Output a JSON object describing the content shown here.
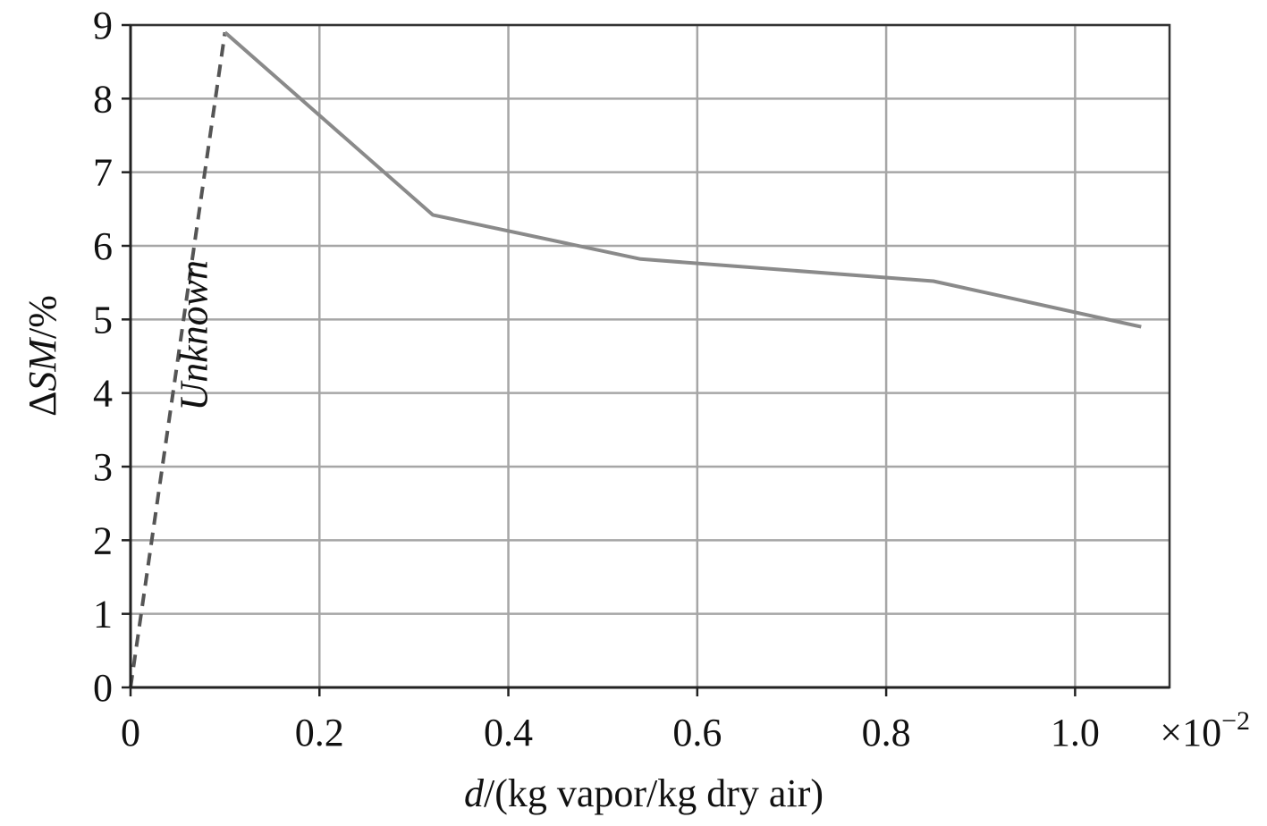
{
  "chart_data": {
    "type": "line",
    "title": "",
    "xlabel": {
      "italic": "d",
      "rest": "/(kg vapor/kg dry air)"
    },
    "ylabel": {
      "delta": "Δ",
      "italic": "SM",
      "rest": "/%"
    },
    "x_multiplier": {
      "prefix": "×10",
      "exponent": "−2"
    },
    "xlim": [
      0,
      1.1
    ],
    "ylim": [
      0,
      9
    ],
    "x_ticks": [
      0,
      0.2,
      0.4,
      0.6,
      0.8,
      1.0
    ],
    "x_tick_labels": [
      "0",
      "0.2",
      "0.4",
      "0.6",
      "0.8",
      "1.0"
    ],
    "y_ticks": [
      0,
      1,
      2,
      3,
      4,
      5,
      6,
      7,
      8,
      9
    ],
    "y_tick_labels": [
      "0",
      "1",
      "2",
      "3",
      "4",
      "5",
      "6",
      "7",
      "8",
      "9"
    ],
    "grid": true,
    "series": [
      {
        "style": "dashed",
        "color": "#555555",
        "x": [
          0,
          0.1
        ],
        "y": [
          0,
          8.9
        ]
      },
      {
        "style": "solid",
        "color": "#8a8a8a",
        "x": [
          0.1,
          0.32,
          0.54,
          0.85,
          1.07
        ],
        "y": [
          8.9,
          6.42,
          5.82,
          5.52,
          4.9
        ]
      }
    ],
    "annotations": [
      {
        "text": "Unknown",
        "x": 0.1,
        "y": 5.0,
        "rotation": -90
      }
    ],
    "colors": {
      "grid": "#a6a6a6",
      "axis": "#222222",
      "frame": "#333333"
    }
  }
}
